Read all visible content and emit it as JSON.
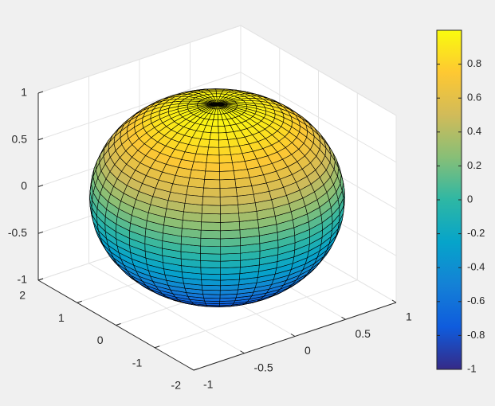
{
  "chart_data": {
    "type": "surface",
    "xlim": [
      -1,
      1
    ],
    "ylim": [
      -2,
      2
    ],
    "zlim": [
      -1,
      1
    ],
    "xticks": [
      -1,
      -0.5,
      0,
      0.5,
      1
    ],
    "yticks": [
      -2,
      -1,
      0,
      1,
      2
    ],
    "zticks": [
      -1,
      -0.5,
      0,
      0.5,
      1
    ],
    "grid": true,
    "surface": {
      "shape": "ellipsoid",
      "x_radius": 1,
      "y_radius": 2,
      "z_radius": 1,
      "mesh": 40,
      "edge_color": "#000000"
    },
    "colormap": [
      "#352a87",
      "#0f5cdd",
      "#1481d6",
      "#06a4ca",
      "#2eb7a4",
      "#87bf77",
      "#d1bb59",
      "#fec832",
      "#f9fb0e"
    ],
    "clim": [
      -1,
      1
    ],
    "colorbar_ticks": [
      -1,
      -0.8,
      -0.6,
      -0.4,
      -0.2,
      0,
      0.2,
      0.4,
      0.6,
      0.8
    ]
  }
}
